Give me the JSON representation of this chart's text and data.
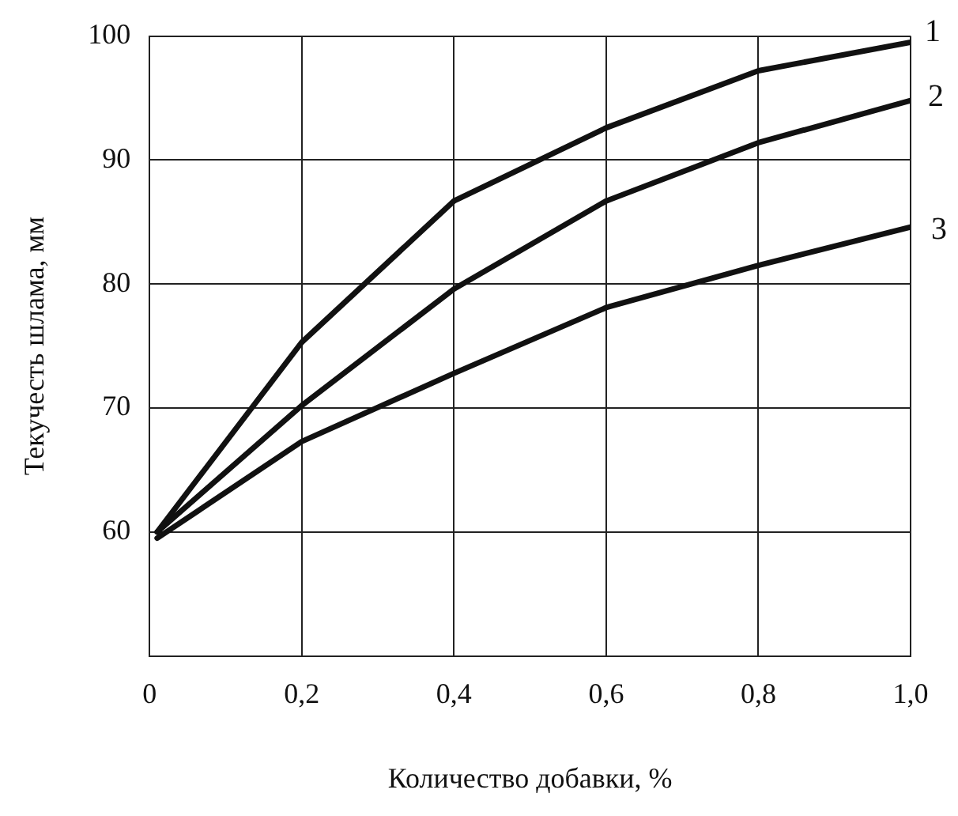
{
  "chart_data": {
    "type": "line",
    "xlabel": "Количество добавки, %",
    "ylabel": "Текучесть шлама, мм",
    "xlim": [
      0,
      1
    ],
    "ylim": [
      50,
      100
    ],
    "xticks": [
      0,
      {
        "value": 0.2,
        "label": "0,2"
      },
      {
        "value": 0.4,
        "label": "0,4"
      },
      {
        "value": 0.6,
        "label": "0,6"
      },
      {
        "value": 0.8,
        "label": "0,8"
      },
      {
        "value": 1,
        "label": "1,0"
      }
    ],
    "yticks": [
      {
        "value": 50,
        "label": null
      },
      60,
      70,
      80,
      90,
      100
    ],
    "grid": true,
    "marker": "none",
    "line_style": "solid",
    "x": [
      0.01,
      0.2,
      0.4,
      0.6,
      0.8,
      1.0
    ],
    "series": [
      {
        "name": "1",
        "color": "#111111",
        "values": [
          60,
          75.3,
          86.7,
          92.6,
          97.2,
          99.5
        ]
      },
      {
        "name": "2",
        "color": "#111111",
        "values": [
          60,
          70.2,
          79.6,
          86.7,
          91.4,
          94.8
        ]
      },
      {
        "name": "3",
        "color": "#111111",
        "values": [
          59.5,
          67.3,
          72.8,
          78.1,
          81.5,
          84.6
        ]
      }
    ]
  }
}
